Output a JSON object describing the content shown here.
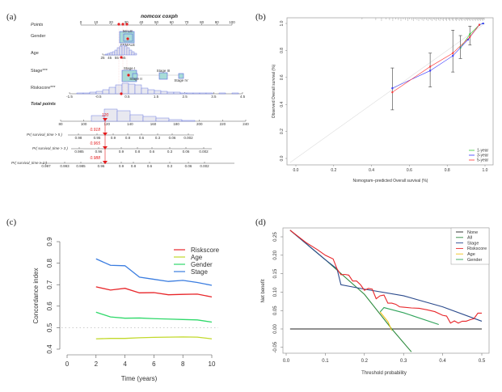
{
  "panels": {
    "a": {
      "label": "(a)"
    },
    "b": {
      "label": "(b)"
    },
    "c": {
      "label": "(c)"
    },
    "d": {
      "label": "(d)"
    }
  },
  "chart_data": [
    {
      "panel": "a",
      "type": "table",
      "title": "nomcox coxph",
      "rows": [
        {
          "name": "Points",
          "ticks": [
            "0",
            "10",
            "20",
            "30",
            "40",
            "50",
            "60",
            "70",
            "80",
            "90",
            "100"
          ]
        },
        {
          "name": "Gender",
          "levels": [
            "MALE",
            "FEMALE"
          ]
        },
        {
          "name": "Age",
          "ticks": [
            "25",
            "45",
            "55",
            "65"
          ]
        },
        {
          "name": "Stage***",
          "levels": [
            "Stage I",
            "Stage II",
            "Stage III",
            "Stage IV"
          ]
        },
        {
          "name": "Riskscore***",
          "ticks": [
            "-1.5",
            "-0.5",
            "0.5",
            "1.5",
            "2.5",
            "3.5",
            "4.5"
          ]
        },
        {
          "name": "Total points",
          "ticks": [
            "80",
            "100",
            "120",
            "140",
            "160",
            "180",
            "200",
            "220",
            "240"
          ],
          "marker": "120"
        },
        {
          "name": "Pr( survival_time > 5 )",
          "ticks": [
            "0.98",
            "0.95",
            "0.9",
            "0.8",
            "0.6",
            "0.3",
            "0.06",
            "0.002"
          ],
          "marker": "0.918"
        },
        {
          "name": "Pr( survival_time > 3 )",
          "ticks": [
            "0.985",
            "0.96",
            "0.9",
            "0.8",
            "0.6",
            "0.3",
            "0.06",
            "0.002"
          ],
          "marker": "0.965"
        },
        {
          "name": "Pr( survival_time > 1 )",
          "ticks": [
            "0.997",
            "0.993",
            "0.985",
            "0.96",
            "0.9",
            "0.8",
            "0.6",
            "0.3",
            "0.06",
            "0.002"
          ],
          "marker": "0.988"
        }
      ]
    },
    {
      "panel": "b",
      "type": "line",
      "title": "",
      "xlabel": "Nomogram−predicted Overall survival (%)",
      "ylabel": "Observed Overall survival (%)",
      "xlim": [
        0,
        1
      ],
      "ylim": [
        0,
        1
      ],
      "xticks": [
        "0.0",
        "0.2",
        "0.4",
        "0.6",
        "0.8",
        "1.0"
      ],
      "yticks": [
        "0.0",
        "0.2",
        "0.4",
        "0.6",
        "0.8",
        "1.0"
      ],
      "legend_position": "bottom-right",
      "series": [
        {
          "name": "1-year",
          "color": "#33cc33",
          "x": [
            0.87,
            0.92,
            0.97,
            0.99
          ],
          "y": [
            0.82,
            0.92,
            0.99,
            1.0
          ]
        },
        {
          "name": "3-year",
          "color": "#3333ff",
          "x": [
            0.51,
            0.71,
            0.83,
            0.91,
            0.97,
            0.99
          ],
          "y": [
            0.52,
            0.65,
            0.76,
            0.88,
            0.99,
            1.0
          ]
        },
        {
          "name": "5-year",
          "color": "#ff3333",
          "x": [
            0.51,
            0.71,
            0.83,
            0.92,
            0.97
          ],
          "y": [
            0.49,
            0.68,
            0.78,
            0.9,
            0.99
          ]
        }
      ],
      "errorbars": [
        {
          "x": 0.51,
          "lo": 0.36,
          "hi": 0.67
        },
        {
          "x": 0.71,
          "lo": 0.53,
          "hi": 0.78
        },
        {
          "x": 0.83,
          "lo": 0.64,
          "hi": 0.95
        },
        {
          "x": 0.87,
          "lo": 0.74,
          "hi": 0.91
        },
        {
          "x": 0.92,
          "lo": 0.84,
          "hi": 0.98
        }
      ]
    },
    {
      "panel": "c",
      "type": "line",
      "title": "",
      "xlabel": "Time (years)",
      "ylabel": "Concordance index",
      "xlim": [
        0,
        10
      ],
      "ylim": [
        0.4,
        0.9
      ],
      "xticks": [
        "0",
        "2",
        "4",
        "6",
        "8",
        "10"
      ],
      "yticks": [
        "0.4",
        "0.5",
        "0.6",
        "0.7",
        "0.8",
        "0.9"
      ],
      "reference_line": 0.5,
      "legend_position": "top-right",
      "x": [
        2,
        3,
        4,
        5,
        6,
        7,
        8,
        9,
        10
      ],
      "series": [
        {
          "name": "Riskscore",
          "color": "#e8262a",
          "values": [
            0.69,
            0.675,
            0.683,
            0.662,
            0.663,
            0.653,
            0.655,
            0.656,
            0.643
          ]
        },
        {
          "name": "Age",
          "color": "#c2d92b",
          "values": [
            0.448,
            0.45,
            0.45,
            0.453,
            0.455,
            0.456,
            0.457,
            0.456,
            0.448
          ]
        },
        {
          "name": "Gender",
          "color": "#2fd96a",
          "values": [
            0.572,
            0.55,
            0.544,
            0.545,
            0.542,
            0.54,
            0.538,
            0.536,
            0.526
          ]
        },
        {
          "name": "Stage",
          "color": "#3b7de0",
          "values": [
            0.82,
            0.79,
            0.788,
            0.735,
            0.725,
            0.715,
            0.72,
            0.71,
            0.697
          ]
        }
      ]
    },
    {
      "panel": "d",
      "type": "line",
      "title": "",
      "xlabel": "Threshold probability",
      "ylabel": "Net benefit",
      "xlim": [
        0,
        0.5
      ],
      "ylim": [
        -0.05,
        0.27
      ],
      "xticks": [
        "0.0",
        "0.1",
        "0.2",
        "0.3",
        "0.4",
        "0.5"
      ],
      "yticks": [
        "-0.05",
        "0.00",
        "0.05",
        "0.10",
        "0.15",
        "0.20",
        "0.25"
      ],
      "legend_position": "top-right",
      "series": [
        {
          "name": "None",
          "color": "#222222",
          "x": [
            0.01,
            0.5
          ],
          "y": [
            0,
            0
          ]
        },
        {
          "name": "All",
          "color": "#2e8b3e",
          "x": [
            0.01,
            0.1,
            0.2,
            0.27,
            0.32
          ],
          "y": [
            0.268,
            0.188,
            0.094,
            0.0,
            -0.062
          ]
        },
        {
          "name": "Stage",
          "color": "#2b4a8c",
          "x": [
            0.01,
            0.1,
            0.13,
            0.14,
            0.2,
            0.3,
            0.4,
            0.5
          ],
          "y": [
            0.268,
            0.188,
            0.163,
            0.12,
            0.108,
            0.09,
            0.06,
            0.021
          ]
        },
        {
          "name": "Riskscore",
          "color": "#e8262a",
          "x": [
            0.01,
            0.05,
            0.08,
            0.1,
            0.12,
            0.13,
            0.14,
            0.15,
            0.16,
            0.17,
            0.18,
            0.19,
            0.2,
            0.21,
            0.22,
            0.23,
            0.24,
            0.25,
            0.26,
            0.27,
            0.28,
            0.29,
            0.3,
            0.32,
            0.34,
            0.36,
            0.38,
            0.4,
            0.41,
            0.42,
            0.43,
            0.44,
            0.45,
            0.46,
            0.47,
            0.48,
            0.49,
            0.5
          ],
          "y": [
            0.268,
            0.235,
            0.215,
            0.2,
            0.19,
            0.163,
            0.147,
            0.148,
            0.146,
            0.13,
            0.13,
            0.12,
            0.105,
            0.11,
            0.108,
            0.082,
            0.09,
            0.092,
            0.07,
            0.07,
            0.067,
            0.06,
            0.059,
            0.057,
            0.056,
            0.052,
            0.047,
            0.037,
            0.035,
            0.016,
            0.022,
            0.016,
            0.021,
            0.021,
            0.025,
            0.028,
            0.043,
            0.043
          ]
        },
        {
          "name": "Age",
          "color": "#f2c21b",
          "x": [
            0.24,
            0.26,
            0.27
          ],
          "y": [
            0.046,
            0.02,
            -0.004
          ]
        },
        {
          "name": "Gender",
          "color": "#2fa35a",
          "x": [
            0.24,
            0.25,
            0.3,
            0.39
          ],
          "y": [
            0.046,
            0.058,
            0.044,
            0.012
          ]
        }
      ]
    }
  ]
}
